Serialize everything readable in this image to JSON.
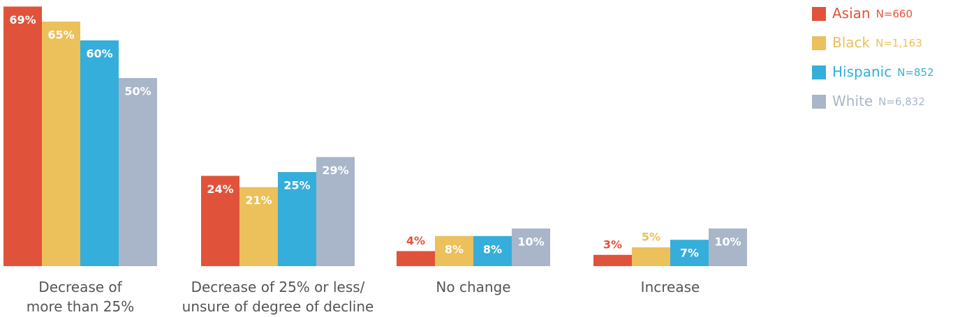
{
  "chart_data": {
    "type": "bar",
    "categories": [
      "Decrease of\nmore than 25%",
      "Decrease of 25% or less/\nunsure of degree of decline",
      "No change",
      "Increase"
    ],
    "series": [
      {
        "name": "Asian",
        "n_label": "N=660",
        "color": "#e0533a",
        "values": [
          69,
          24,
          4,
          3
        ],
        "value_labels": [
          "69%",
          "24%",
          "4%",
          "3%"
        ]
      },
      {
        "name": "Black",
        "n_label": "N=1,163",
        "color": "#ecc05a",
        "values": [
          65,
          21,
          8,
          5
        ],
        "value_labels": [
          "65%",
          "21%",
          "8%",
          "5%"
        ]
      },
      {
        "name": "Hispanic",
        "n_label": "N=852",
        "color": "#35aedb",
        "values": [
          60,
          25,
          8,
          7
        ],
        "value_labels": [
          "60%",
          "25%",
          "8%",
          "7%"
        ]
      },
      {
        "name": "White",
        "n_label": "N=6,832",
        "color": "#a9b6c9",
        "values": [
          50,
          29,
          10,
          10
        ],
        "value_labels": [
          "50%",
          "29%",
          "10%",
          "10%"
        ]
      }
    ],
    "legend": "top-right"
  }
}
